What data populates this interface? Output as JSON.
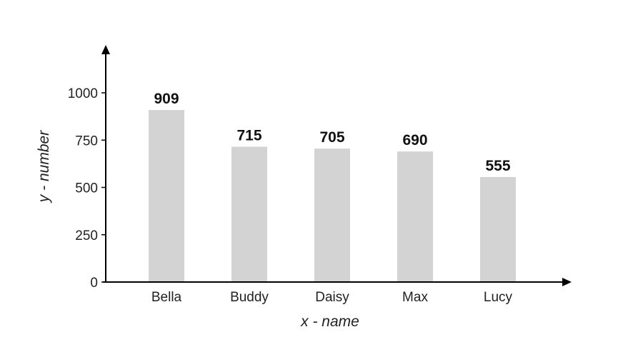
{
  "chart_data": {
    "type": "bar",
    "title": "",
    "xlabel": "x - name",
    "ylabel": "y - number",
    "categories": [
      "Bella",
      "Buddy",
      "Daisy",
      "Max",
      "Lucy"
    ],
    "values": [
      909,
      715,
      705,
      690,
      555
    ],
    "data_labels": [
      "909",
      "715",
      "705",
      "690",
      "555"
    ],
    "yticks": [
      0,
      250,
      500,
      750,
      1000
    ],
    "ylim": [
      0,
      1000
    ],
    "grid": false,
    "legend": "none",
    "bar_color": "#d3d3d3",
    "axis_color": "#000000"
  }
}
